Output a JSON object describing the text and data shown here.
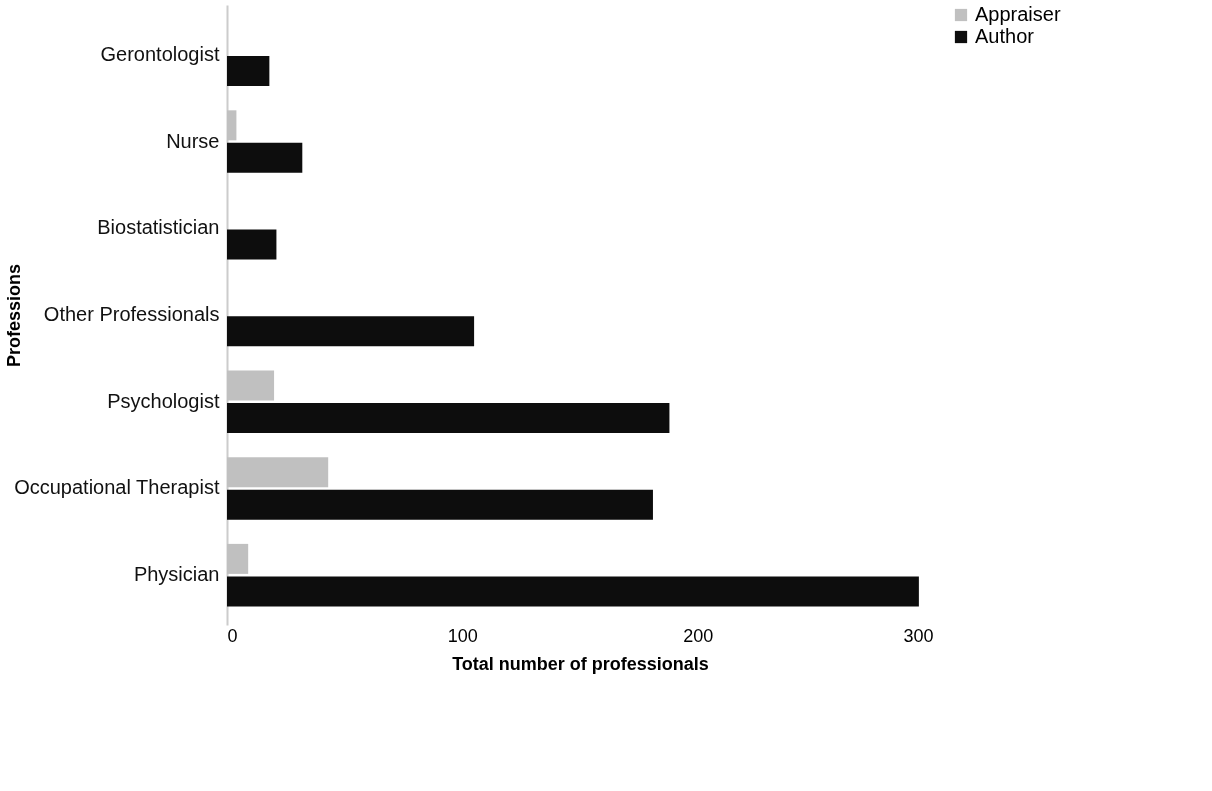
{
  "chart_data": {
    "type": "bar",
    "orientation": "horizontal",
    "xlabel": "Total number of professionals",
    "ylabel": "Professions",
    "categories": [
      "Gerontologist",
      "Nurse",
      "Biostatistician",
      "Other Professionals",
      "Psychologist",
      "Occupational Therapist",
      "Physician"
    ],
    "series": [
      {
        "name": "Appraiser",
        "color": "#c0c0c0",
        "values": [
          0,
          4,
          0,
          0,
          20,
          43,
          9
        ]
      },
      {
        "name": "Author",
        "color": "#0d0d0d",
        "values": [
          18,
          32,
          21,
          105,
          188,
          181,
          294
        ]
      }
    ],
    "xlim": [
      0,
      300
    ],
    "xticks": [
      0,
      100,
      200,
      300
    ],
    "grid": false,
    "legend": "right"
  }
}
